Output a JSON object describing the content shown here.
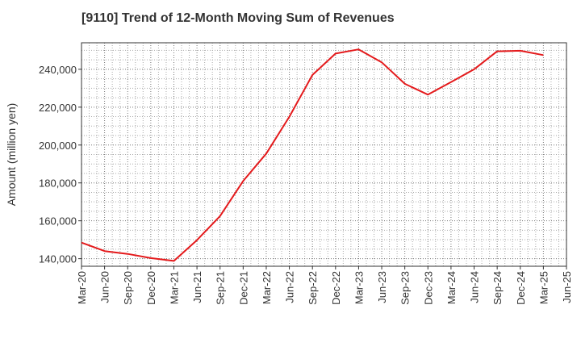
{
  "chart_data": {
    "type": "line",
    "title": "[9110]  Trend of 12-Month Moving Sum of Revenues",
    "ylabel": "Amount (million yen)",
    "xlabel": "",
    "ylim": [
      136000,
      254000
    ],
    "yticks": [
      140000,
      160000,
      180000,
      200000,
      220000,
      240000
    ],
    "ytick_labels": [
      "140,000",
      "160,000",
      "180,000",
      "200,000",
      "220,000",
      "240,000"
    ],
    "xtick_labels": [
      "Mar-20",
      "Jun-20",
      "Sep-20",
      "Dec-20",
      "Mar-21",
      "Jun-21",
      "Sep-21",
      "Dec-21",
      "Mar-22",
      "Jun-22",
      "Sep-22",
      "Dec-22",
      "Mar-23",
      "Jun-23",
      "Sep-23",
      "Dec-23",
      "Mar-24",
      "Jun-24",
      "Sep-24",
      "Dec-24",
      "Mar-25",
      "Jun-25"
    ],
    "grid": true,
    "series": [
      {
        "color": "#e41a1c",
        "x": [
          "Mar-20",
          "Jun-20",
          "Sep-20",
          "Dec-20",
          "Mar-21",
          "Jun-21",
          "Sep-21",
          "Dec-21",
          "Mar-22",
          "Jun-22",
          "Sep-22",
          "Dec-22",
          "Mar-23",
          "Jun-23",
          "Sep-23",
          "Dec-23",
          "Mar-24",
          "Jun-24",
          "Sep-24",
          "Dec-24",
          "Mar-25"
        ],
        "values": [
          148500,
          144000,
          142500,
          140300,
          138800,
          149800,
          162500,
          181000,
          195500,
          215000,
          237000,
          248300,
          250500,
          243700,
          232300,
          226600,
          233200,
          240000,
          249500,
          249800,
          247500
        ]
      }
    ]
  }
}
